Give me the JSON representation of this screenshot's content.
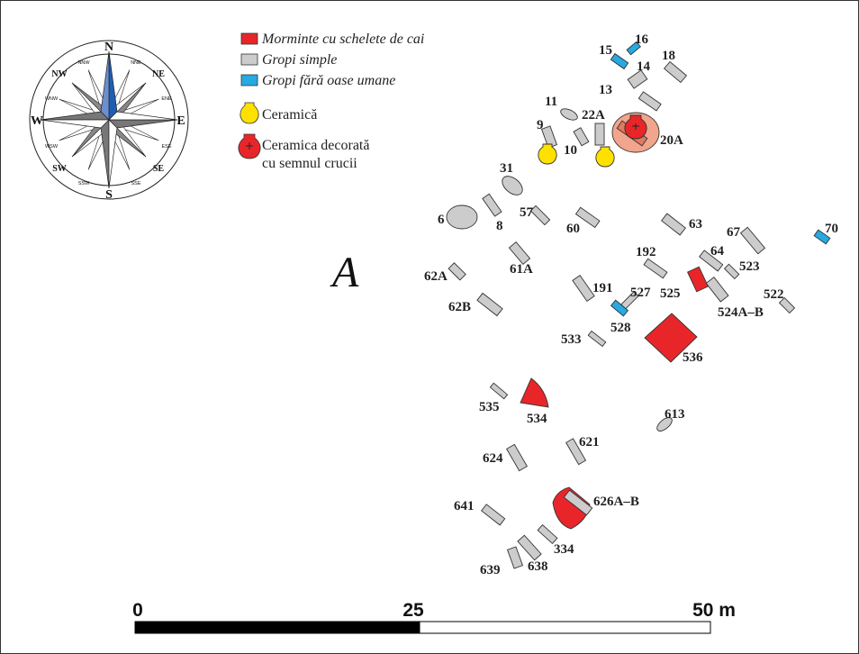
{
  "legend": {
    "items": [
      {
        "label": "Morminte cu schelete de cai",
        "swatch": "rect",
        "color": "#e8262a",
        "italic": true
      },
      {
        "label": "Gropi simple",
        "swatch": "rect",
        "color": "#cccccc",
        "italic": true
      },
      {
        "label": "Gropi fără oase umane",
        "swatch": "rect",
        "color": "#27a9e1",
        "italic": true
      },
      {
        "label": "Ceramică",
        "swatch": "vessel",
        "color": "#ffe100",
        "italic": false
      },
      {
        "label": "Ceramica decorată",
        "label2": "cu semnul crucii",
        "swatch": "vessel-cross",
        "color": "#e8262a",
        "italic": false
      }
    ]
  },
  "compass": {
    "cardinal": {
      "n": "N",
      "s": "S",
      "e": "E",
      "w": "W"
    },
    "intercardinal": {
      "nw": "NW",
      "ne": "NE",
      "sw": "SW",
      "se": "SE"
    },
    "secondary": {
      "nnw": "NNW",
      "nne": "NNE",
      "ene": "ENE",
      "ese": "ESE",
      "sse": "SSE",
      "ssw": "SSW",
      "wsw": "WSW",
      "wnw": "WNW"
    }
  },
  "area_label": "A",
  "scale": {
    "tick_0": "0",
    "tick_mid": "25",
    "tick_end": "50 m"
  },
  "features": {
    "f15": "15",
    "f16": "16",
    "f14": "14",
    "f18": "18",
    "f13": "13",
    "f11": "11",
    "f22a": "22A",
    "f9": "9",
    "f10": "10",
    "f20a": "20A",
    "f31": "31",
    "f6": "6",
    "f8": "8",
    "f57": "57",
    "f60": "60",
    "f63": "63",
    "f67": "67",
    "f70": "70",
    "f192": "192",
    "f64": "64",
    "f523": "523",
    "f62a": "62A",
    "f61a": "61A",
    "f191": "191",
    "f527": "527",
    "f525": "525",
    "f522": "522",
    "f524ab": "524A–B",
    "f62b": "62B",
    "f528": "528",
    "f533": "533",
    "f536": "536",
    "f535": "535",
    "f534": "534",
    "f613": "613",
    "f621": "621",
    "f624": "624",
    "f626ab": "626A–B",
    "f641": "641",
    "f334": "334",
    "f639": "639",
    "f638": "638"
  }
}
